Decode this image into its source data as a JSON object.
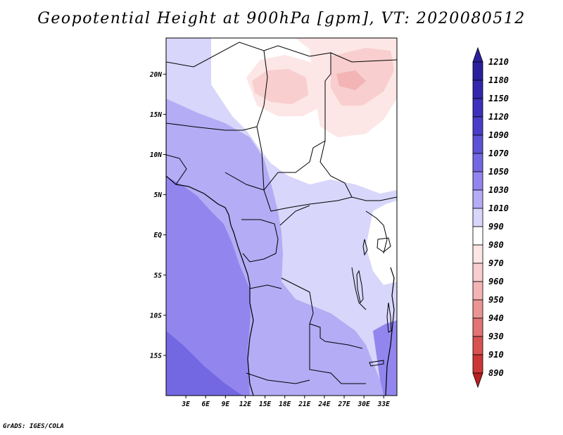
{
  "title": "Geopotential Height at 900hPa [gpm], VT: 2020080512",
  "credit": "GrADS: IGES/COLA",
  "map": {
    "variable": "Geopotential Height",
    "level": "900hPa",
    "units": "gpm",
    "valid_time": "2020080512",
    "lon_range": [
      0,
      35
    ],
    "lat_range": [
      -20,
      24.5
    ],
    "lon_ticks": [
      {
        "value": 3,
        "label": "3E"
      },
      {
        "value": 6,
        "label": "6E"
      },
      {
        "value": 9,
        "label": "9E"
      },
      {
        "value": 12,
        "label": "12E"
      },
      {
        "value": 15,
        "label": "15E"
      },
      {
        "value": 18,
        "label": "18E"
      },
      {
        "value": 21,
        "label": "21E"
      },
      {
        "value": 24,
        "label": "24E"
      },
      {
        "value": 27,
        "label": "27E"
      },
      {
        "value": 30,
        "label": "30E"
      },
      {
        "value": 33,
        "label": "33E"
      }
    ],
    "lat_ticks": [
      {
        "value": 20,
        "label": "20N"
      },
      {
        "value": 15,
        "label": "15N"
      },
      {
        "value": 10,
        "label": "10N"
      },
      {
        "value": 5,
        "label": "5N"
      },
      {
        "value": 0,
        "label": "EQ"
      },
      {
        "value": -5,
        "label": "5S"
      },
      {
        "value": -10,
        "label": "10S"
      },
      {
        "value": -15,
        "label": "15S"
      }
    ]
  },
  "colorbar": {
    "levels": [
      {
        "label": "1210",
        "color": "#2b1f9e"
      },
      {
        "label": "1180",
        "color": "#3326ad"
      },
      {
        "label": "1150",
        "color": "#3d30bc"
      },
      {
        "label": "1120",
        "color": "#4a3ec9"
      },
      {
        "label": "1090",
        "color": "#5c52d6"
      },
      {
        "label": "1070",
        "color": "#7468e2"
      },
      {
        "label": "1050",
        "color": "#9286ee"
      },
      {
        "label": "1030",
        "color": "#b4acf5"
      },
      {
        "label": "1010",
        "color": "#d8d6fa"
      },
      {
        "label": "990",
        "color": "#ffffff"
      },
      {
        "label": "980",
        "color": "#fde6e6"
      },
      {
        "label": "970",
        "color": "#f8cece"
      },
      {
        "label": "960",
        "color": "#f2b4b4"
      },
      {
        "label": "950",
        "color": "#ea9494"
      },
      {
        "label": "940",
        "color": "#e27474"
      },
      {
        "label": "930",
        "color": "#d85252"
      },
      {
        "label": "910",
        "color": "#cc3636"
      },
      {
        "label": "890",
        "color": "#b82020"
      }
    ]
  }
}
